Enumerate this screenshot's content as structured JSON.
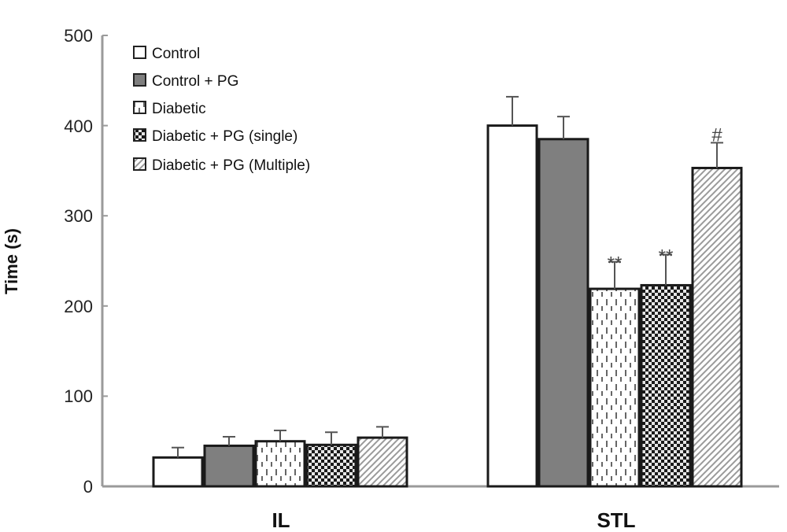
{
  "chart_data": {
    "type": "bar",
    "title": "",
    "xlabel": "",
    "ylabel": "Time (s)",
    "ylim": [
      0,
      500
    ],
    "yticks": [
      "0",
      "100",
      "200",
      "300",
      "400",
      "500"
    ],
    "categories": [
      "IL",
      "STL"
    ],
    "grid": false,
    "legend_position": "top-left",
    "series": [
      {
        "name": "Control",
        "values": [
          32,
          400
        ],
        "errors": [
          11,
          32
        ],
        "pattern": "white",
        "annotations": [
          "",
          ""
        ]
      },
      {
        "name": "Control + PG",
        "values": [
          45,
          385
        ],
        "errors": [
          10,
          25
        ],
        "pattern": "solid-gray",
        "annotations": [
          "",
          ""
        ]
      },
      {
        "name": "Diabetic",
        "values": [
          50,
          219
        ],
        "errors": [
          12,
          30
        ],
        "pattern": "dashes",
        "annotations": [
          "",
          "**"
        ]
      },
      {
        "name": "Diabetic + PG (single)",
        "values": [
          46,
          223
        ],
        "errors": [
          14,
          34
        ],
        "pattern": "checker",
        "annotations": [
          "",
          "**"
        ]
      },
      {
        "name": "Diabetic + PG (Multiple)",
        "values": [
          54,
          353
        ],
        "errors": [
          12,
          28
        ],
        "pattern": "diagonal",
        "annotations": [
          "",
          "#"
        ]
      }
    ]
  }
}
